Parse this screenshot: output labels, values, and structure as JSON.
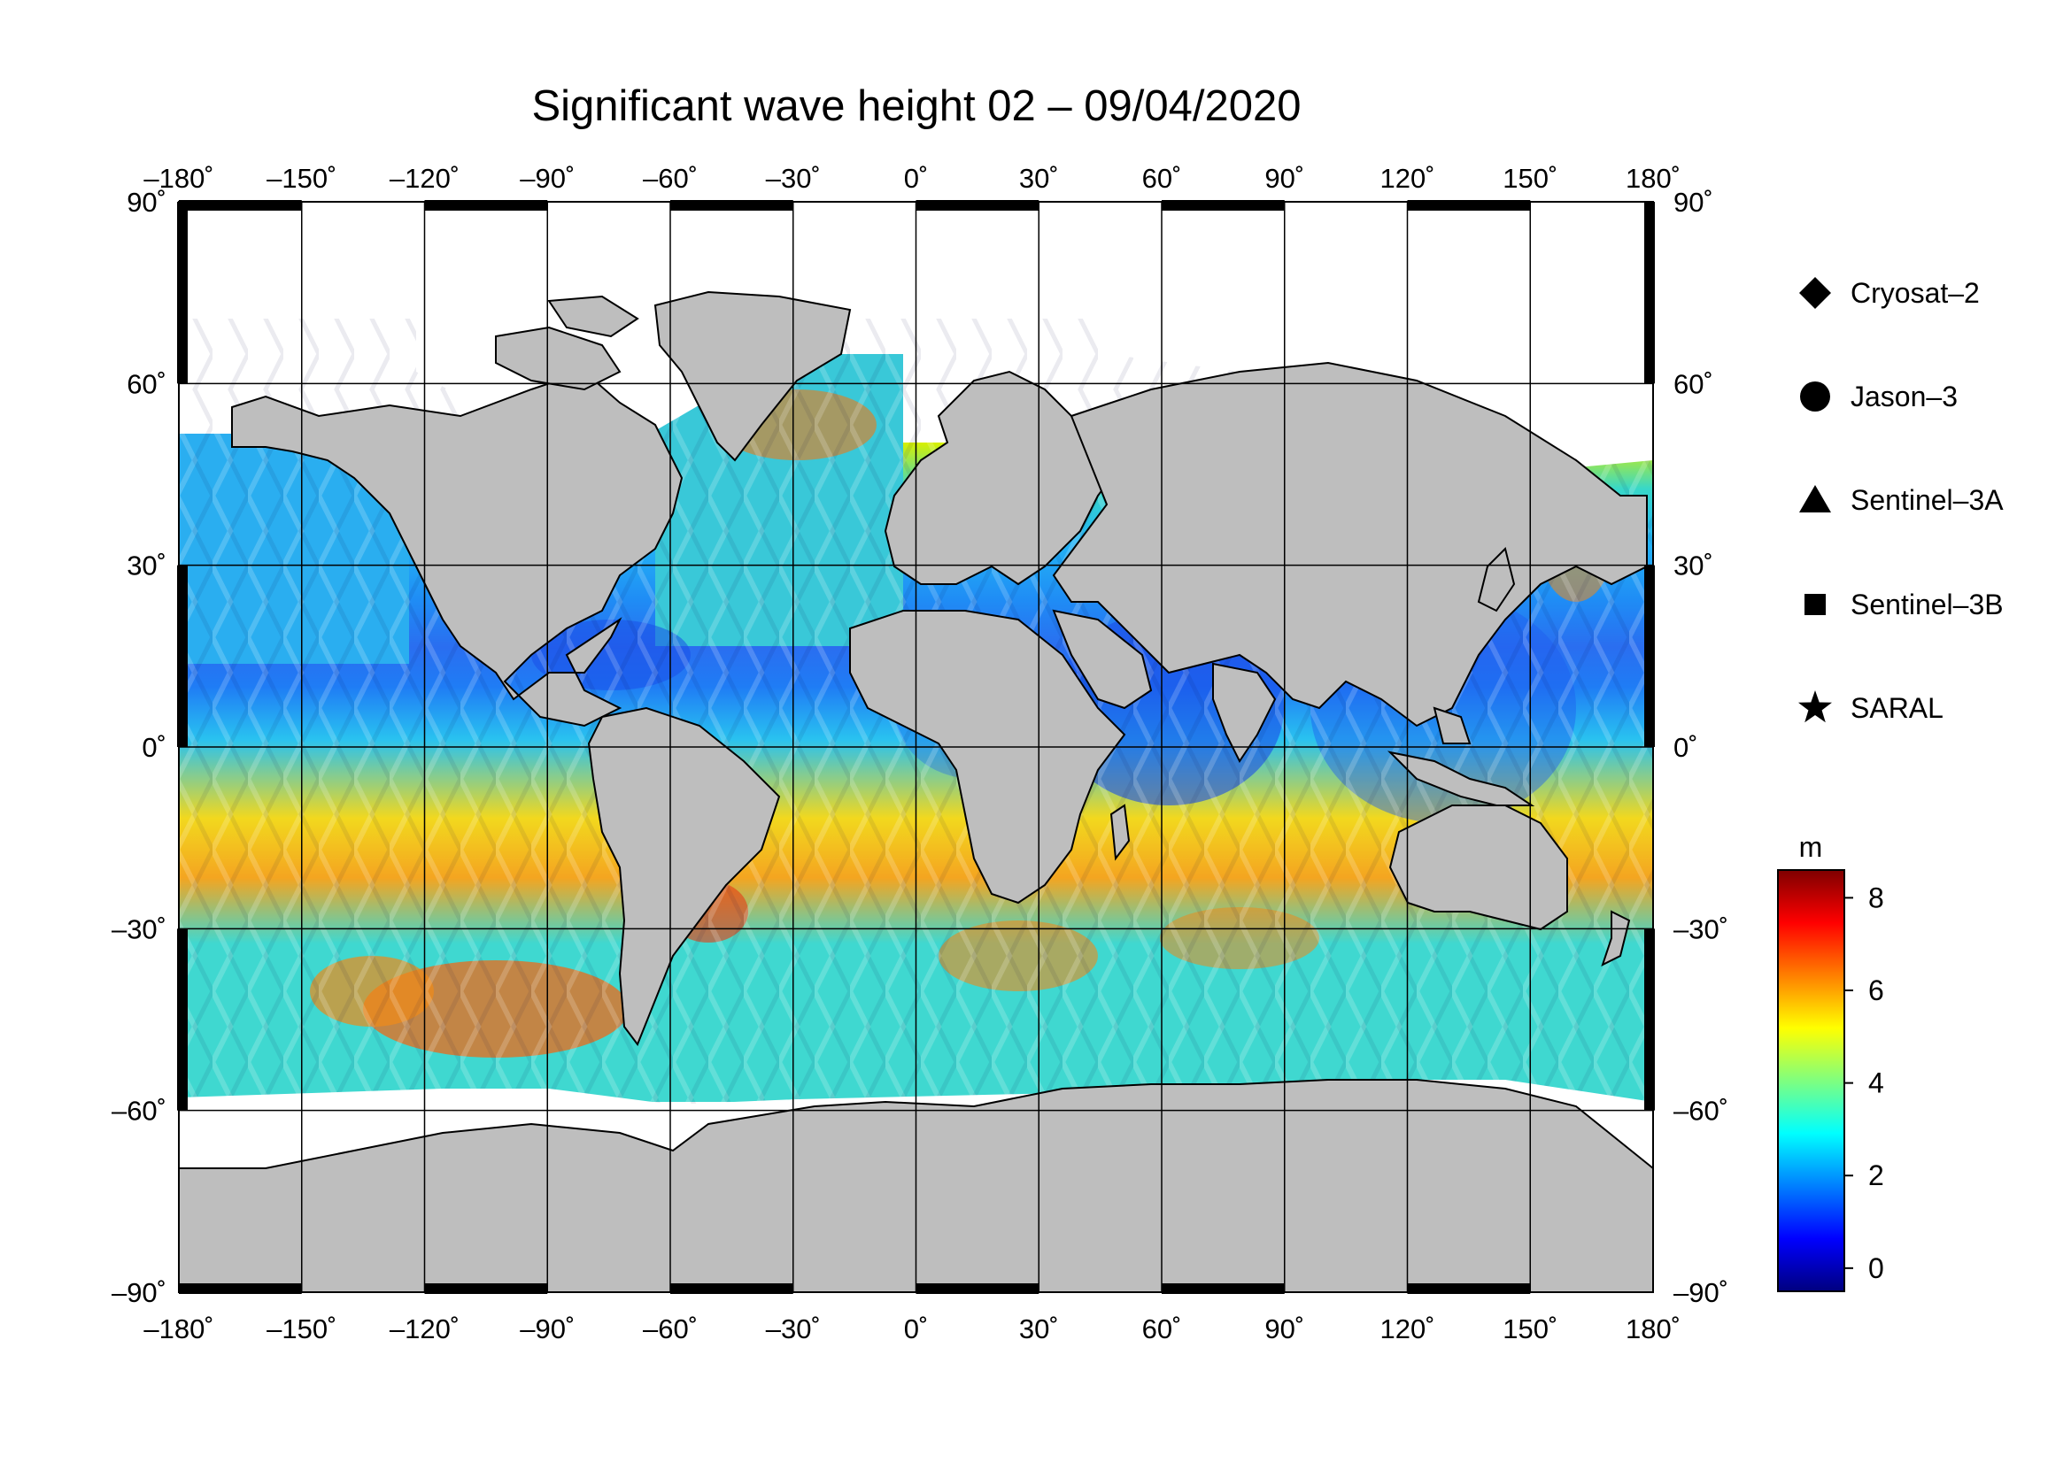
{
  "title": "Significant wave height 02 – 09/04/2020",
  "map": {
    "lon_ticks": [
      "–180",
      "–150",
      "–120",
      "–90",
      "–60",
      "–30",
      "0",
      "30",
      "60",
      "90",
      "120",
      "150",
      "180"
    ],
    "lat_ticks": [
      "90",
      "60",
      "30",
      "0",
      "–30",
      "–60",
      "–90"
    ],
    "degree_symbol": "˚",
    "land_color": "#bebebe",
    "ice_color": "#ffffff"
  },
  "legend": {
    "items": [
      {
        "label": "Cryosat–2",
        "marker": "diamond"
      },
      {
        "label": "Jason–3",
        "marker": "circle"
      },
      {
        "label": "Sentinel–3A",
        "marker": "triangle"
      },
      {
        "label": "Sentinel–3B",
        "marker": "square"
      },
      {
        "label": "SARAL",
        "marker": "star"
      }
    ]
  },
  "colorbar": {
    "unit": "m",
    "ticks": [
      "0",
      "2",
      "4",
      "6",
      "8"
    ],
    "min": -0.5,
    "max": 8.6,
    "colors": [
      "#00007f",
      "#0000ff",
      "#007fff",
      "#00ffff",
      "#7fff7f",
      "#ffff00",
      "#ff7f00",
      "#ff0000",
      "#7f0000"
    ]
  }
}
